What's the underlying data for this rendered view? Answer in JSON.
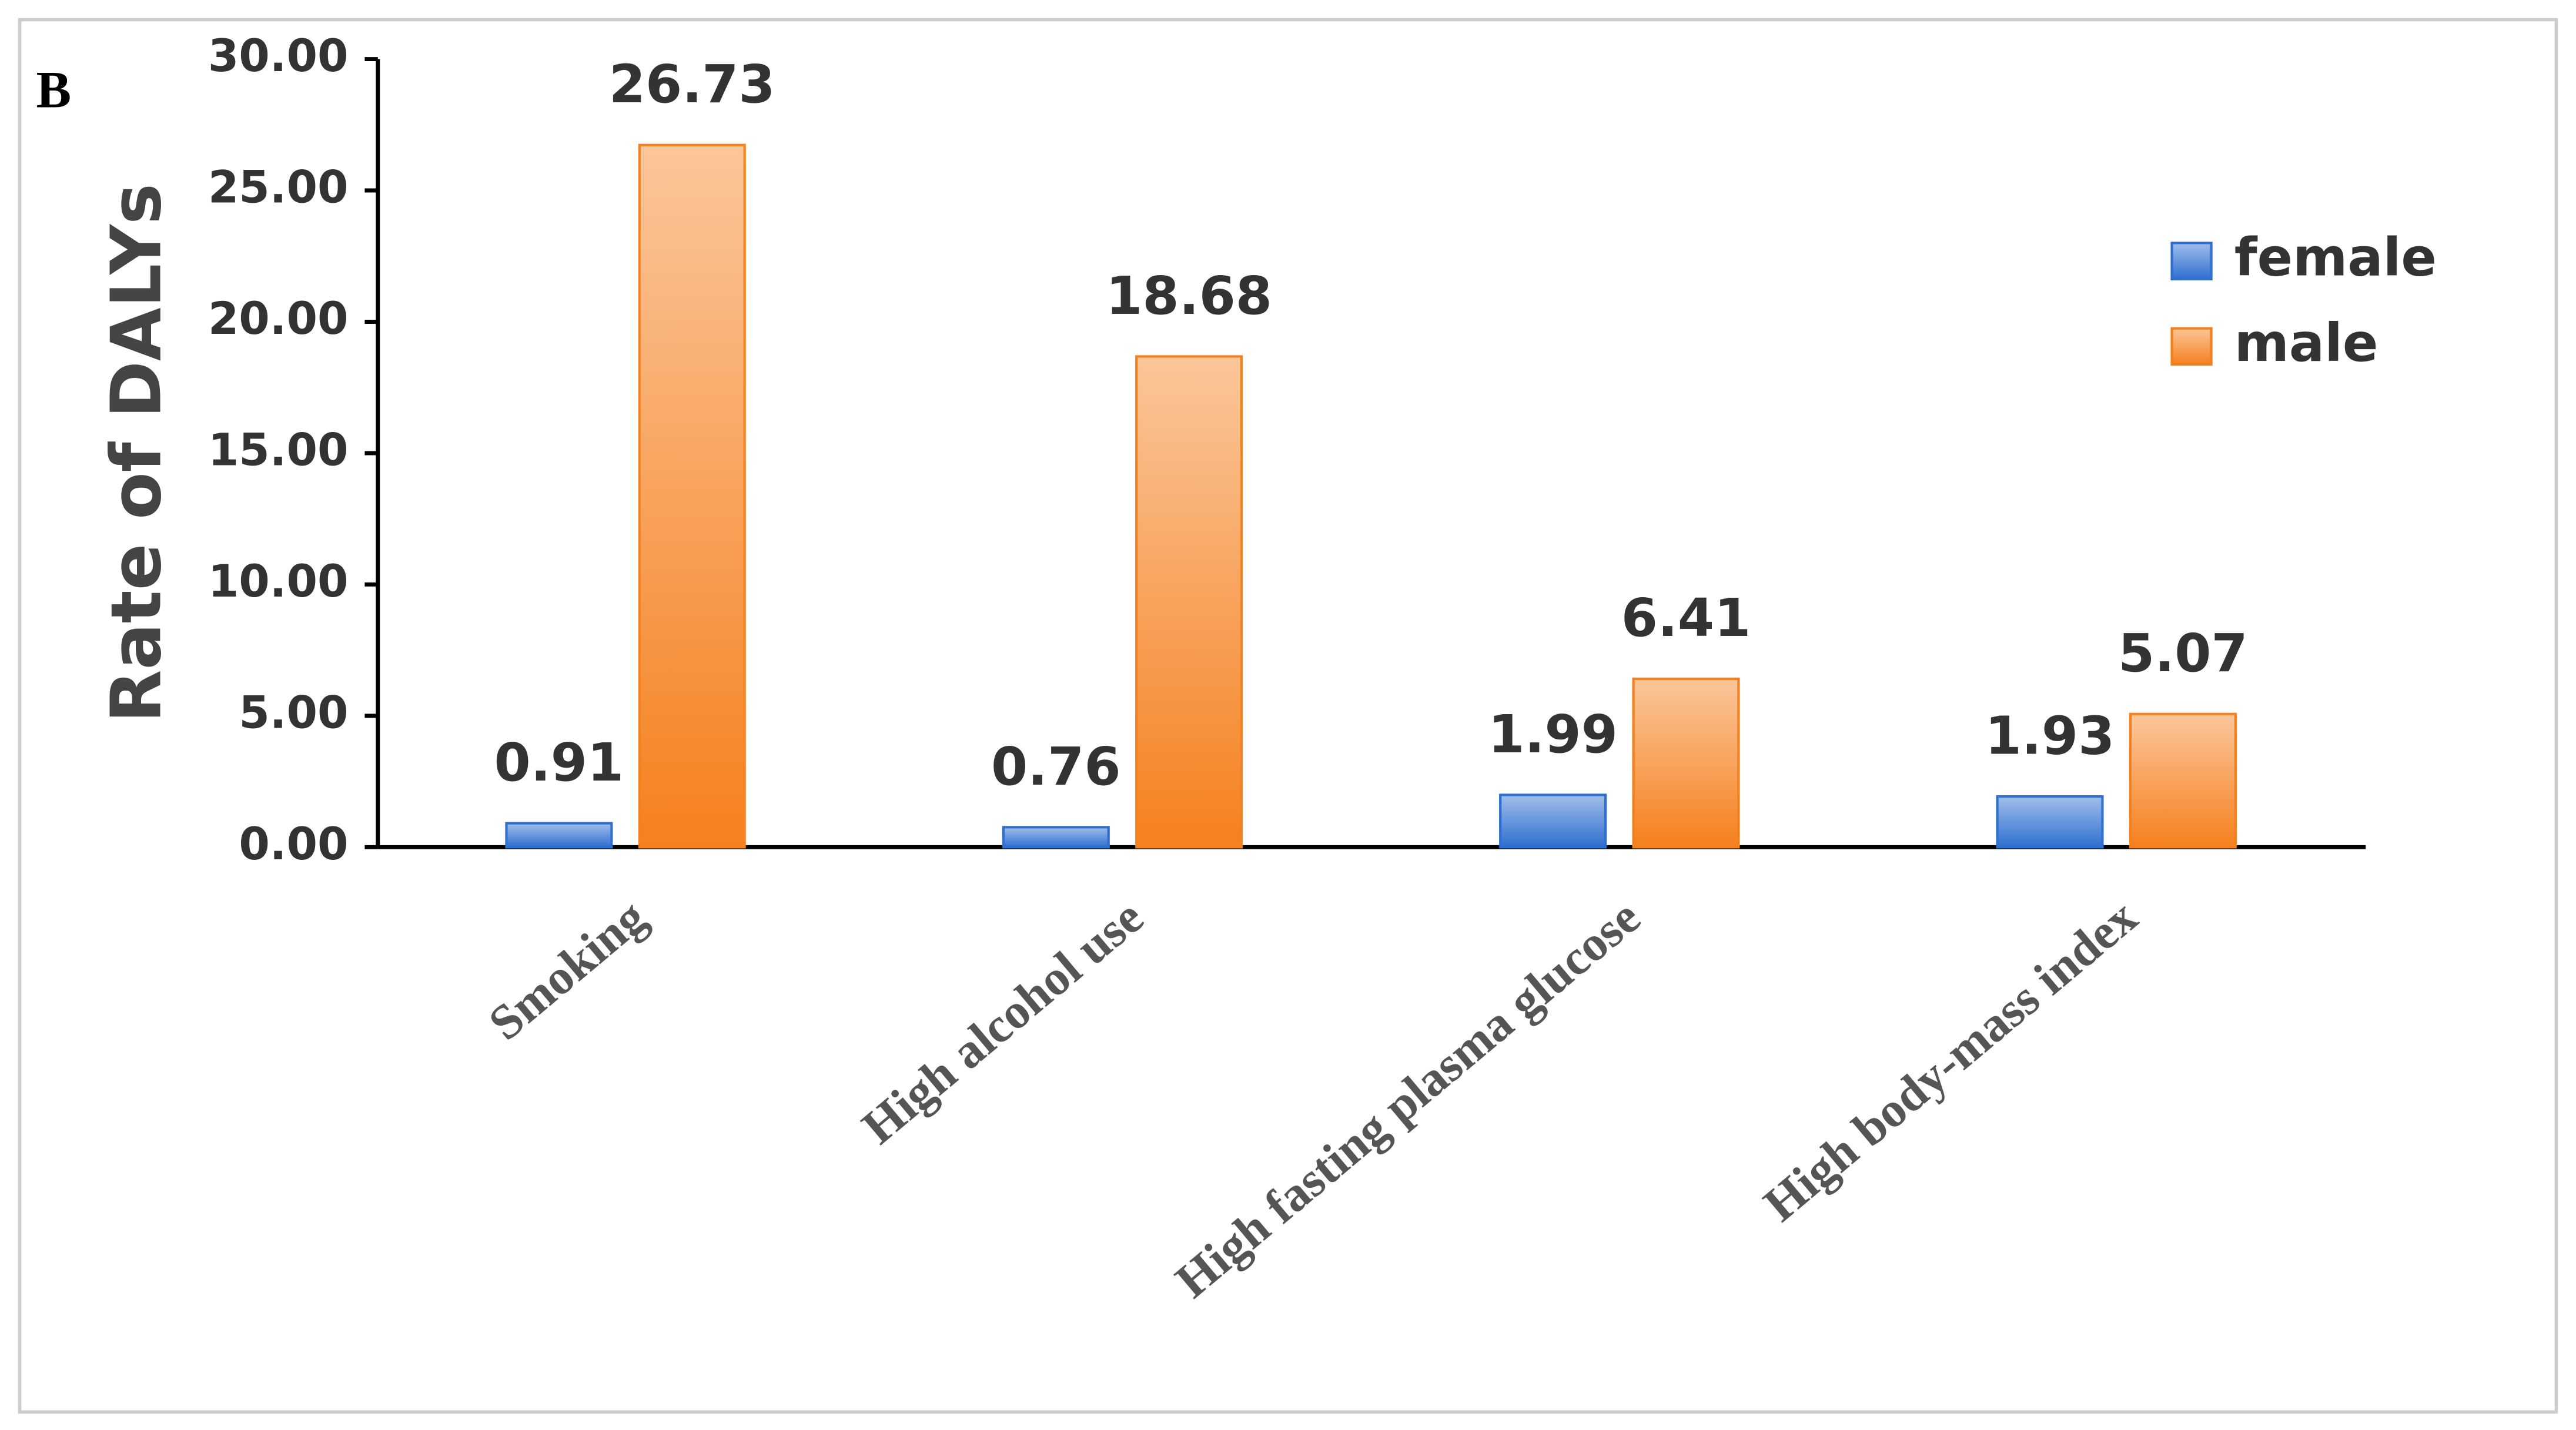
{
  "chart_data": {
    "type": "bar",
    "panel_label": "B",
    "y_label": "Rate of DALYs",
    "categories": [
      "Smoking",
      "High alcohol use",
      "High fasting plasma glucose",
      "High body-mass index"
    ],
    "series": [
      {
        "name": "female",
        "color": "#2f6fd0",
        "values": [
          0.91,
          0.76,
          1.99,
          1.93
        ]
      },
      {
        "name": "male",
        "color": "#f5801e",
        "values": [
          26.73,
          18.68,
          6.41,
          5.07
        ]
      }
    ],
    "ylim": [
      0,
      30
    ],
    "yticks": [
      {
        "value": 0,
        "label": "0.00"
      },
      {
        "value": 5,
        "label": "5.00"
      },
      {
        "value": 10,
        "label": "10.00"
      },
      {
        "value": 15,
        "label": "15.00"
      },
      {
        "value": 20,
        "label": "20.00"
      },
      {
        "value": 25,
        "label": "25.00"
      },
      {
        "value": 30,
        "label": "30.00"
      }
    ],
    "grid": false,
    "legend": "upper right"
  }
}
